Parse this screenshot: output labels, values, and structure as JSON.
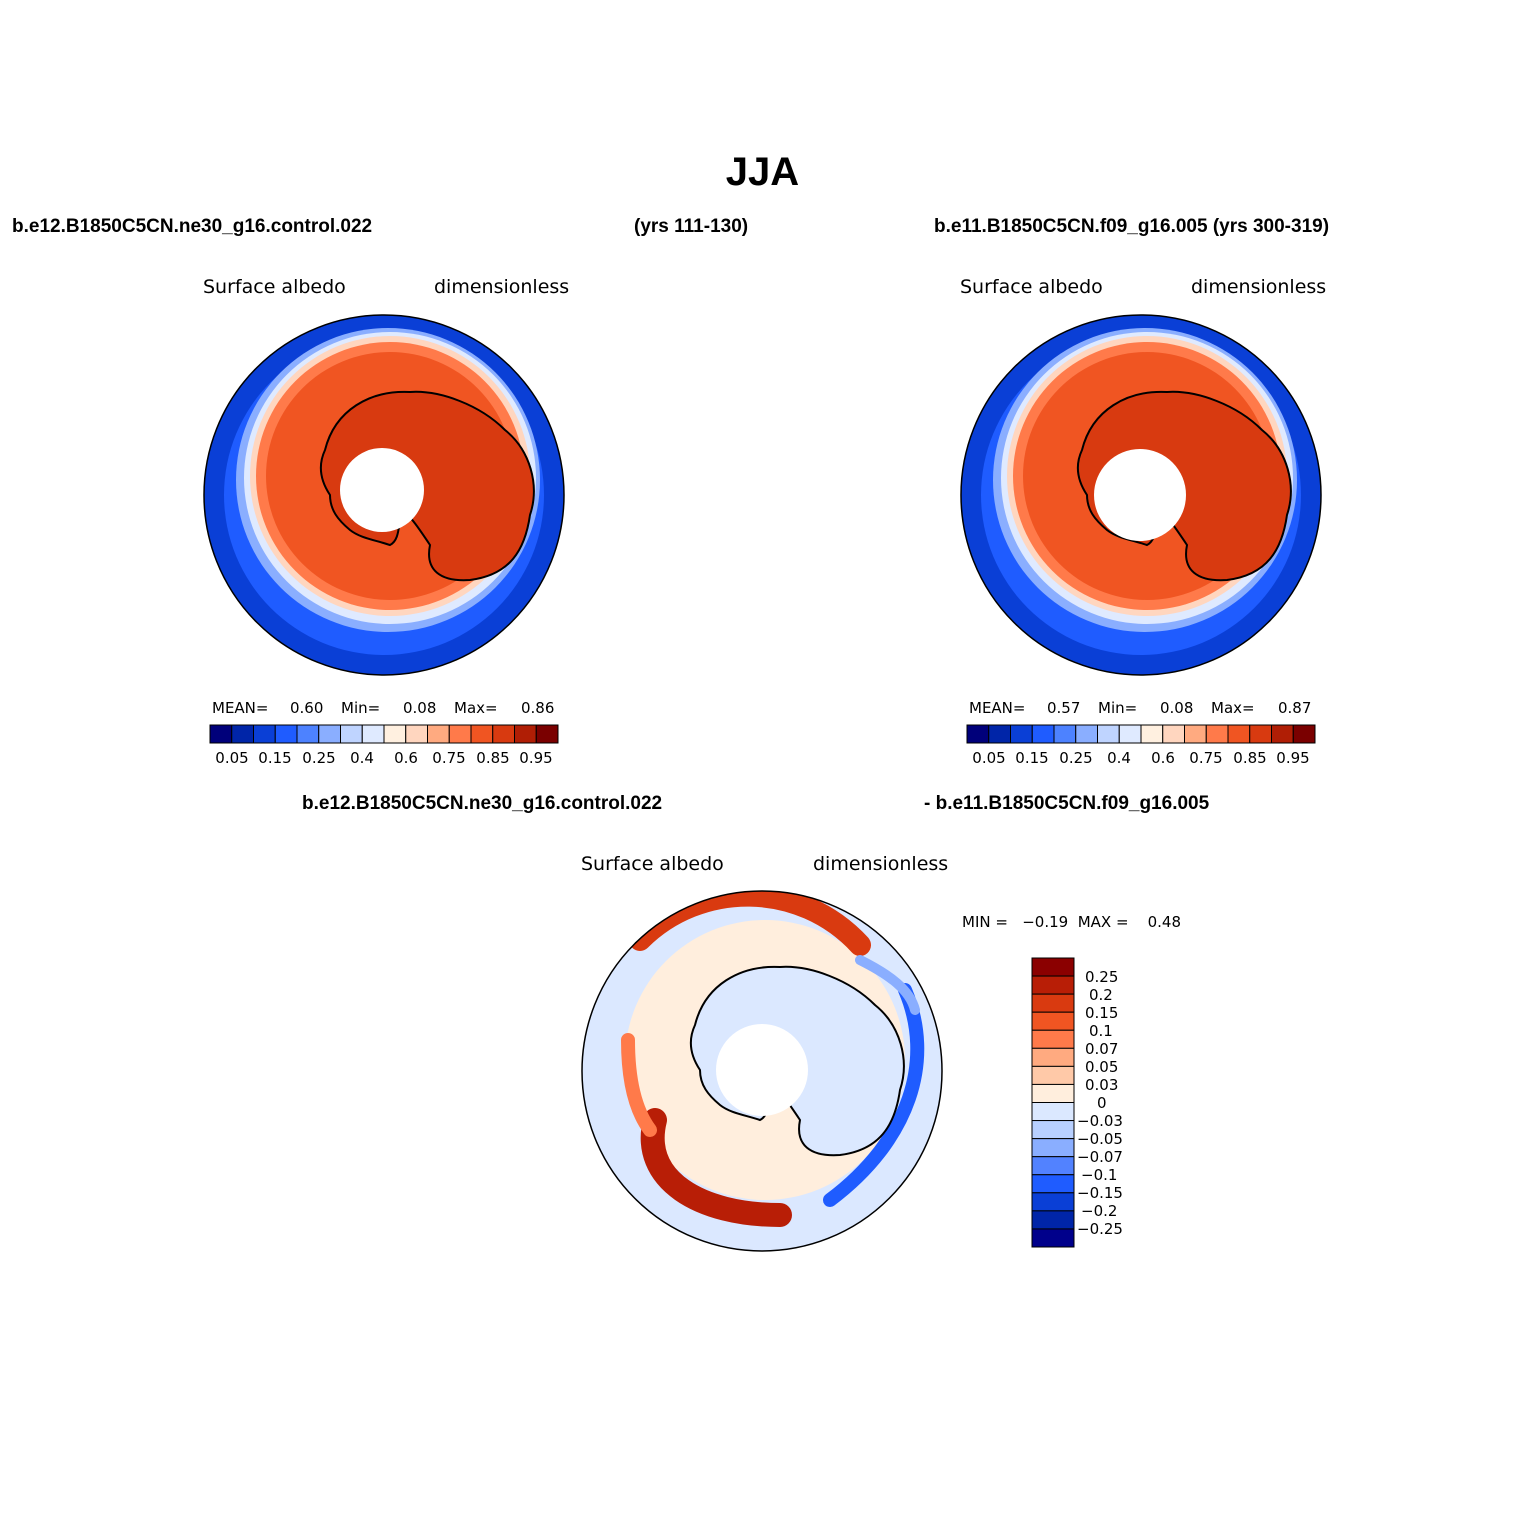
{
  "title": "JJA",
  "top_left": {
    "case": "b.e12.B1850C5CN.ne30_g16.control.022",
    "years": "(yrs 111-130)",
    "variable": "Surface albedo",
    "units": "dimensionless",
    "stats": {
      "mean_label": "MEAN=",
      "mean": "0.60",
      "min_label": "Min=",
      "min": "0.08",
      "max_label": "Max=",
      "max": "0.86"
    },
    "colorbar_ticks": [
      "0.05",
      "0.15",
      "0.25",
      "0.4",
      "0.6",
      "0.75",
      "0.85",
      "0.95"
    ]
  },
  "top_right": {
    "case": "b.e11.B1850C5CN.f09_g16.005 (yrs 300-319)",
    "variable": "Surface albedo",
    "units": "dimensionless",
    "stats": {
      "mean_label": "MEAN=",
      "mean": "0.57",
      "min_label": "Min=",
      "min": "0.08",
      "max_label": "Max=",
      "max": "0.87"
    },
    "colorbar_ticks": [
      "0.05",
      "0.15",
      "0.25",
      "0.4",
      "0.6",
      "0.75",
      "0.85",
      "0.95"
    ]
  },
  "difference": {
    "case_a": "b.e12.B1850C5CN.ne30_g16.control.022",
    "case_b": "- b.e11.B1850C5CN.f09_g16.005",
    "variable": "Surface albedo",
    "units": "dimensionless",
    "minmax": "MIN =   −0.19  MAX =    0.48",
    "colorbar_labels": [
      "0.25",
      "0.2",
      "0.15",
      "0.1",
      "0.07",
      "0.05",
      "0.03",
      "0",
      "−0.03",
      "−0.05",
      "−0.07",
      "−0.1",
      "−0.15",
      "−0.2",
      "−0.25"
    ]
  },
  "palettes": {
    "albedo": [
      "#00007a",
      "#0025a8",
      "#0a3fd6",
      "#1f5cff",
      "#4d82ff",
      "#8aaeff",
      "#bfd4ff",
      "#dfeaff",
      "#fff0e0",
      "#ffd6bf",
      "#ffaa80",
      "#ff7a4a",
      "#f05522",
      "#d83a10",
      "#b01e05",
      "#7a0000"
    ],
    "diff": [
      "#8b0000",
      "#b81e06",
      "#d93a10",
      "#f05522",
      "#ff7a4a",
      "#ffaa80",
      "#ffc9a8",
      "#ffeedd",
      "#dbe8ff",
      "#b8d0ff",
      "#8aaeff",
      "#5282ff",
      "#1f5cff",
      "#0a3fd6",
      "#0025a8",
      "#00008b"
    ]
  }
}
